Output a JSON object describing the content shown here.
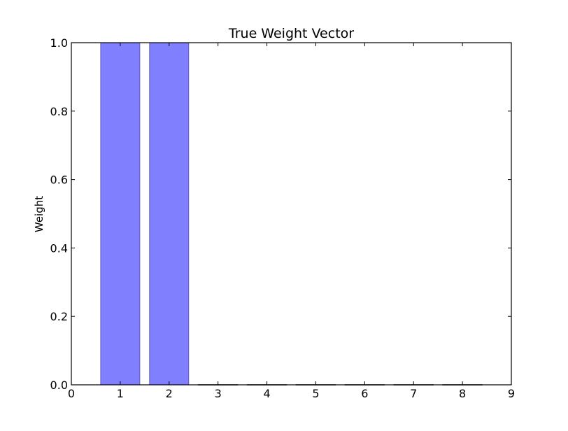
{
  "chart_data": {
    "type": "bar",
    "title": "True Weight Vector",
    "xlabel": "",
    "ylabel": "Weight",
    "xlim": [
      0,
      9
    ],
    "ylim": [
      0,
      1.0
    ],
    "x_ticks": [
      "0",
      "1",
      "2",
      "3",
      "4",
      "5",
      "6",
      "7",
      "8",
      "9"
    ],
    "y_ticks": [
      "0.0",
      "0.2",
      "0.4",
      "0.6",
      "0.8",
      "1.0"
    ],
    "x": [
      1,
      2,
      3,
      4,
      5,
      6,
      7,
      8
    ],
    "values": [
      1.0,
      1.0,
      0.0,
      0.0,
      0.0,
      0.0,
      0.0,
      0.0
    ],
    "bar_width": 0.8,
    "bar_color": "#8080ff",
    "bar_edge_color": "#5a5ab4",
    "grid": false,
    "legend": "none"
  }
}
